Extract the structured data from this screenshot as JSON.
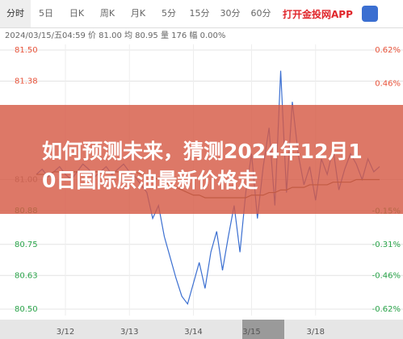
{
  "tabs": [
    "分时",
    "5日",
    "日K",
    "周K",
    "月K",
    "5分",
    "15分",
    "30分",
    "60分"
  ],
  "app_link": "打开金投网APP",
  "info": "2024/03/15/五04:59 价 81.00 均 80.95 量 176 幅 0.00%",
  "banner_title": "如何预测未来，猜测2024年12月10日国际原油最新价格走",
  "chart_data": {
    "type": "line",
    "reference": 81.0,
    "up_color": "#e8533a",
    "down_color": "#2aa44a",
    "flat_color": "#888888",
    "ylim": [
      80.5,
      81.5
    ],
    "yticks": [
      {
        "value": 81.5,
        "label": "81.50"
      },
      {
        "value": 81.38,
        "label": "81.38"
      },
      {
        "value": 81.0,
        "label": "81.00"
      },
      {
        "value": 80.88,
        "label": "80.88"
      },
      {
        "value": 80.75,
        "label": "80.75"
      },
      {
        "value": 80.63,
        "label": "80.63"
      },
      {
        "value": 80.5,
        "label": "80.50"
      }
    ],
    "y2lim": [
      -0.62,
      0.62
    ],
    "y2ticks": [
      {
        "value": 0.62,
        "label": "0.62%"
      },
      {
        "value": 0.46,
        "label": "0.46%"
      },
      {
        "value": -0.15,
        "label": "-0.15%"
      },
      {
        "value": -0.31,
        "label": "-0.31%"
      },
      {
        "value": -0.46,
        "label": "-0.46%"
      },
      {
        "value": -0.62,
        "label": "-0.62%"
      }
    ],
    "xlim": [
      0,
      59
    ],
    "xticks": [
      {
        "value": 5,
        "label": "3/12"
      },
      {
        "value": 16,
        "label": "3/13"
      },
      {
        "value": 27,
        "label": "3/14"
      },
      {
        "value": 37,
        "label": "3/15"
      },
      {
        "value": 48,
        "label": "3/18"
      }
    ],
    "grid": true,
    "series": [
      {
        "name": "价",
        "color": "#3b6fd1",
        "values": [
          81.02,
          81.04,
          81.01,
          81.03,
          81.05,
          81.02,
          81.0,
          81.03,
          81.06,
          81.04,
          81.01,
          81.03,
          81.05,
          81.02,
          81.04,
          81.06,
          81.03,
          81.01,
          80.98,
          80.95,
          80.85,
          80.9,
          80.78,
          80.7,
          80.62,
          80.55,
          80.52,
          80.6,
          80.68,
          80.58,
          80.72,
          80.8,
          80.65,
          80.78,
          80.9,
          80.72,
          80.95,
          81.1,
          80.85,
          81.05,
          81.2,
          80.9,
          81.42,
          80.95,
          81.3,
          81.1,
          80.98,
          81.05,
          80.92,
          81.08,
          81.02,
          81.12,
          80.96,
          81.04,
          81.1,
          81.06,
          81.0,
          81.08,
          81.03,
          81.05
        ]
      },
      {
        "name": "均",
        "color": "#6b5a3a",
        "values": [
          81.02,
          81.02,
          81.02,
          81.03,
          81.03,
          81.03,
          81.03,
          81.03,
          81.03,
          81.03,
          81.03,
          81.03,
          81.03,
          81.03,
          81.03,
          81.03,
          81.03,
          81.03,
          81.02,
          81.02,
          81.01,
          81.0,
          80.99,
          80.98,
          80.97,
          80.96,
          80.95,
          80.94,
          80.94,
          80.93,
          80.93,
          80.93,
          80.93,
          80.93,
          80.93,
          80.93,
          80.93,
          80.94,
          80.94,
          80.94,
          80.95,
          80.95,
          80.96,
          80.96,
          80.97,
          80.97,
          80.97,
          80.98,
          80.98,
          80.98,
          80.98,
          80.99,
          80.99,
          80.99,
          80.99,
          81.0,
          81.0,
          81.0,
          81.0,
          81.0
        ]
      }
    ]
  }
}
